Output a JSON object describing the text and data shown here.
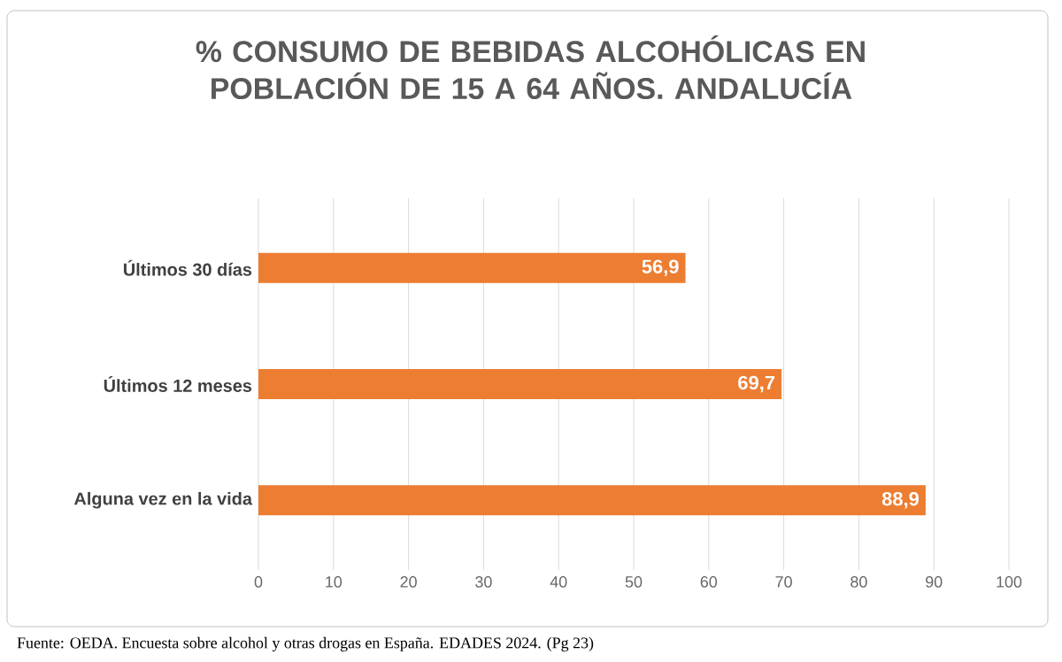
{
  "chart_data": {
    "type": "bar",
    "orientation": "horizontal",
    "title": "% CONSUMO DE BEBIDAS ALCOHÓLICAS EN POBLACIÓN DE 15 A 64 AÑOS. ANDALUCÍA",
    "categories": [
      "Últimos 30 días",
      "Últimos 12 meses",
      "Alguna vez en la vida"
    ],
    "values": [
      56.9,
      69.7,
      88.9
    ],
    "value_labels": [
      "56,9",
      "69,7",
      "88,9"
    ],
    "color": "#ed7d31",
    "xlim": [
      0,
      100
    ],
    "xticks": [
      0,
      10,
      20,
      30,
      40,
      50,
      60,
      70,
      80,
      90,
      100
    ],
    "grid": "x",
    "annotations": [
      "Fuente: OEDA. Encuesta sobre alcohol y otras drogas en España. EDADES 2024. (Pg 23)"
    ]
  }
}
